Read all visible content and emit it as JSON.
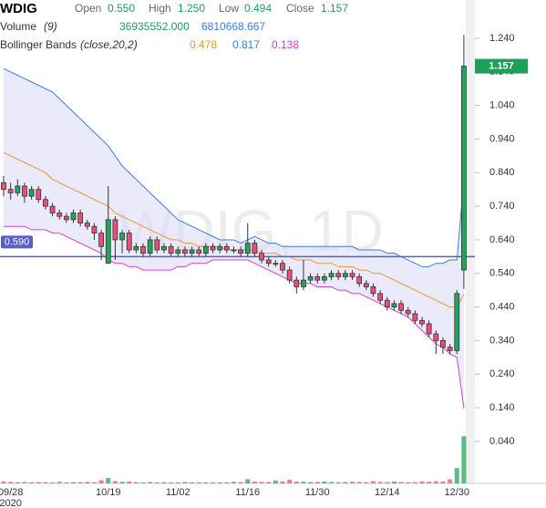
{
  "chart_data": {
    "type": "candlestick",
    "header": {
      "symbol": "WDIG",
      "fields": [
        {
          "label": "Open",
          "value": "0.550"
        },
        {
          "label": "High",
          "value": "1.250"
        },
        {
          "label": "Low",
          "value": "0.494"
        },
        {
          "label": "Close",
          "value": "1.157"
        }
      ],
      "indicators": [
        {
          "name": "Volume",
          "params": "(9)",
          "values": [
            "36935552.000",
            "6810668.667"
          ],
          "colors": [
            "#1e9e5a",
            "#3b7ddd"
          ]
        },
        {
          "name": "Bollinger Bands",
          "params": "(close,20,2)",
          "values": [
            "0.478",
            "0.817",
            "0.138"
          ],
          "colors": [
            "#e39a3b",
            "#3b7ddd",
            "#d63fc8"
          ]
        }
      ]
    },
    "watermark": "WDIG, 1D",
    "categories": [
      null,
      "09/28",
      null,
      null,
      null,
      null,
      null,
      null,
      null,
      null,
      null,
      null,
      null,
      null,
      null,
      "10/19",
      null,
      null,
      null,
      null,
      null,
      null,
      null,
      null,
      null,
      "11/02",
      null,
      null,
      null,
      null,
      null,
      null,
      null,
      null,
      null,
      "11/16",
      null,
      null,
      null,
      null,
      null,
      null,
      null,
      null,
      null,
      "11/30",
      null,
      null,
      null,
      null,
      null,
      null,
      null,
      null,
      null,
      "12/14",
      null,
      null,
      null,
      null,
      null,
      null,
      null,
      null,
      null,
      "12/30",
      null
    ],
    "year": "2020",
    "open": [
      0.81,
      0.79,
      0.78,
      0.8,
      0.77,
      0.79,
      0.76,
      0.74,
      0.72,
      0.71,
      0.7,
      0.72,
      0.69,
      0.68,
      0.66,
      0.57,
      0.7,
      0.64,
      0.66,
      0.61,
      0.62,
      0.6,
      0.64,
      0.61,
      0.62,
      0.6,
      0.61,
      0.6,
      0.61,
      0.6,
      0.62,
      0.61,
      0.62,
      0.61,
      0.61,
      0.6,
      0.63,
      0.6,
      0.58,
      0.57,
      0.57,
      0.55,
      0.52,
      0.5,
      0.52,
      0.53,
      0.52,
      0.53,
      0.54,
      0.53,
      0.54,
      0.53,
      0.51,
      0.5,
      0.48,
      0.46,
      0.44,
      0.45,
      0.43,
      0.42,
      0.4,
      0.39,
      0.36,
      0.34,
      0.32,
      0.31,
      0.55
    ],
    "high": [
      0.83,
      0.81,
      0.82,
      0.81,
      0.8,
      0.8,
      0.77,
      0.75,
      0.73,
      0.72,
      0.73,
      0.73,
      0.7,
      0.69,
      0.67,
      0.8,
      0.71,
      0.67,
      0.67,
      0.63,
      0.63,
      0.65,
      0.65,
      0.63,
      0.63,
      0.62,
      0.62,
      0.62,
      0.62,
      0.63,
      0.63,
      0.63,
      0.63,
      0.62,
      0.62,
      0.69,
      0.64,
      0.61,
      0.59,
      0.58,
      0.58,
      0.56,
      0.53,
      0.58,
      0.54,
      0.54,
      0.54,
      0.55,
      0.55,
      0.55,
      0.55,
      0.54,
      0.52,
      0.51,
      0.49,
      0.47,
      0.46,
      0.46,
      0.44,
      0.43,
      0.41,
      0.4,
      0.37,
      0.35,
      0.33,
      0.49,
      1.25
    ],
    "low": [
      0.77,
      0.76,
      0.77,
      0.75,
      0.76,
      0.75,
      0.73,
      0.71,
      0.7,
      0.69,
      0.69,
      0.68,
      0.67,
      0.64,
      0.58,
      0.57,
      0.58,
      0.6,
      0.6,
      0.6,
      0.59,
      0.59,
      0.6,
      0.6,
      0.59,
      0.59,
      0.59,
      0.59,
      0.59,
      0.59,
      0.6,
      0.6,
      0.6,
      0.6,
      0.59,
      0.59,
      0.59,
      0.57,
      0.56,
      0.56,
      0.54,
      0.51,
      0.48,
      0.49,
      0.51,
      0.51,
      0.51,
      0.52,
      0.52,
      0.52,
      0.52,
      0.5,
      0.49,
      0.47,
      0.45,
      0.43,
      0.43,
      0.42,
      0.41,
      0.39,
      0.38,
      0.35,
      0.3,
      0.3,
      0.3,
      0.3,
      0.494
    ],
    "close": [
      0.79,
      0.78,
      0.8,
      0.77,
      0.79,
      0.76,
      0.74,
      0.72,
      0.71,
      0.7,
      0.72,
      0.69,
      0.68,
      0.66,
      0.62,
      0.7,
      0.64,
      0.66,
      0.61,
      0.62,
      0.6,
      0.64,
      0.61,
      0.62,
      0.6,
      0.61,
      0.6,
      0.61,
      0.6,
      0.62,
      0.61,
      0.62,
      0.61,
      0.61,
      0.6,
      0.63,
      0.6,
      0.58,
      0.57,
      0.57,
      0.55,
      0.52,
      0.5,
      0.52,
      0.53,
      0.52,
      0.53,
      0.54,
      0.53,
      0.54,
      0.53,
      0.51,
      0.5,
      0.48,
      0.46,
      0.44,
      0.45,
      0.43,
      0.42,
      0.4,
      0.39,
      0.36,
      0.34,
      0.32,
      0.31,
      0.48,
      1.157
    ],
    "bands": {
      "middle": [
        0.9,
        0.89,
        0.88,
        0.87,
        0.86,
        0.85,
        0.84,
        0.82,
        0.81,
        0.8,
        0.79,
        0.78,
        0.77,
        0.76,
        0.75,
        0.74,
        0.72,
        0.71,
        0.7,
        0.69,
        0.68,
        0.67,
        0.66,
        0.65,
        0.64,
        0.64,
        0.63,
        0.63,
        0.62,
        0.62,
        0.62,
        0.62,
        0.61,
        0.61,
        0.61,
        0.61,
        0.61,
        0.6,
        0.6,
        0.6,
        0.59,
        0.59,
        0.58,
        0.58,
        0.58,
        0.57,
        0.57,
        0.57,
        0.56,
        0.56,
        0.56,
        0.55,
        0.55,
        0.54,
        0.54,
        0.53,
        0.52,
        0.51,
        0.5,
        0.49,
        0.48,
        0.47,
        0.46,
        0.45,
        0.44,
        0.44,
        0.478
      ],
      "upper": [
        1.15,
        1.14,
        1.13,
        1.12,
        1.11,
        1.1,
        1.09,
        1.08,
        1.06,
        1.04,
        1.02,
        1.0,
        0.98,
        0.96,
        0.94,
        0.92,
        0.89,
        0.86,
        0.84,
        0.82,
        0.8,
        0.78,
        0.76,
        0.74,
        0.72,
        0.7,
        0.69,
        0.68,
        0.67,
        0.66,
        0.65,
        0.64,
        0.64,
        0.64,
        0.63,
        0.64,
        0.65,
        0.64,
        0.63,
        0.63,
        0.62,
        0.62,
        0.62,
        0.62,
        0.62,
        0.62,
        0.62,
        0.62,
        0.62,
        0.62,
        0.62,
        0.61,
        0.61,
        0.61,
        0.61,
        0.6,
        0.6,
        0.59,
        0.58,
        0.57,
        0.56,
        0.56,
        0.57,
        0.57,
        0.58,
        0.58,
        0.817
      ],
      "lower": [
        0.68,
        0.68,
        0.68,
        0.68,
        0.67,
        0.67,
        0.67,
        0.66,
        0.66,
        0.65,
        0.64,
        0.63,
        0.62,
        0.61,
        0.6,
        0.58,
        0.57,
        0.57,
        0.56,
        0.56,
        0.55,
        0.55,
        0.55,
        0.55,
        0.55,
        0.56,
        0.56,
        0.57,
        0.57,
        0.57,
        0.58,
        0.58,
        0.58,
        0.58,
        0.58,
        0.58,
        0.57,
        0.56,
        0.55,
        0.54,
        0.53,
        0.52,
        0.51,
        0.51,
        0.51,
        0.5,
        0.5,
        0.5,
        0.49,
        0.49,
        0.48,
        0.48,
        0.47,
        0.46,
        0.45,
        0.44,
        0.43,
        0.42,
        0.41,
        0.39,
        0.37,
        0.35,
        0.33,
        0.32,
        0.3,
        0.29,
        0.138
      ],
      "colors": {
        "middle": "#e39a3b",
        "upper": "#3b7ddd",
        "lower": "#e040c8",
        "fill": "#dcdcf7"
      }
    },
    "volume": [
      1500000,
      1200000,
      900000,
      1100000,
      800000,
      1000000,
      900000,
      700000,
      1300000,
      800000,
      900000,
      1000000,
      1200000,
      900000,
      2500000,
      4200000,
      1800000,
      1200000,
      1500000,
      900000,
      800000,
      1000000,
      700000,
      900000,
      800000,
      700000,
      1100000,
      800000,
      900000,
      700000,
      1000000,
      800000,
      900000,
      1200000,
      1000000,
      3300000,
      1500000,
      1200000,
      1100000,
      2200000,
      1600000,
      2800000,
      1400000,
      1300000,
      1000000,
      1200000,
      1500000,
      1100000,
      900000,
      1000000,
      1300000,
      1100000,
      900000,
      1800000,
      1200000,
      1000000,
      1400000,
      1100000,
      900000,
      1000000,
      1600000,
      1300000,
      1700000,
      1500000,
      3200000,
      12000000,
      36935552
    ],
    "volume_ylim": [
      0,
      40000000
    ],
    "up_color": "#22a55a",
    "down_color": "#e8507a",
    "ylim": [
      0,
      1.35
    ],
    "yticks": [
      {
        "value": 0.04,
        "label": "0.040"
      },
      {
        "value": 0.14,
        "label": "0.140"
      },
      {
        "value": 0.24,
        "label": "0.240"
      },
      {
        "value": 0.34,
        "label": "0.340"
      },
      {
        "value": 0.44,
        "label": "0.440"
      },
      {
        "value": 0.54,
        "label": "0.540"
      },
      {
        "value": 0.64,
        "label": "0.640"
      },
      {
        "value": 0.74,
        "label": "0.740"
      },
      {
        "value": 0.84,
        "label": "0.840"
      },
      {
        "value": 0.94,
        "label": "0.940"
      },
      {
        "value": 1.04,
        "label": "1.040"
      },
      {
        "value": 1.14,
        "label": "1.140"
      },
      {
        "value": 1.24,
        "label": "1.240"
      }
    ],
    "price_line": {
      "value": 0.59,
      "label": "0.590",
      "color": "#5a5fc8"
    },
    "last_price": {
      "value": 1.157,
      "label": "1.157",
      "color": "#1fa05a"
    }
  }
}
